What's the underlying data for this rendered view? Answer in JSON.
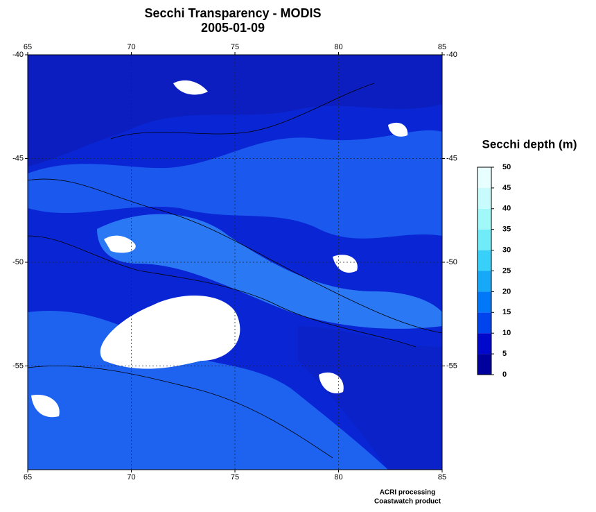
{
  "title": "Secchi Transparency - MODIS",
  "subtitle": "2005-01-09",
  "map": {
    "xlim": [
      65,
      85
    ],
    "ylim": [
      -60,
      -40
    ],
    "xticks": [
      65,
      70,
      75,
      80,
      85
    ],
    "yticks": [
      -40,
      -45,
      -50,
      -55
    ],
    "grid": true
  },
  "colorbar": {
    "title": "Secchi depth (m)",
    "ticks": [
      0,
      5,
      10,
      15,
      20,
      25,
      30,
      35,
      40,
      45,
      50
    ],
    "colors": [
      "#00009c",
      "#0008cc",
      "#0044ee",
      "#0078f8",
      "#18a8f8",
      "#38d0f8",
      "#70ecf8",
      "#a0f8f8",
      "#c8fcfc",
      "#e8ffff"
    ]
  },
  "footer": [
    "ACRI processing",
    "Coastwatch product"
  ]
}
